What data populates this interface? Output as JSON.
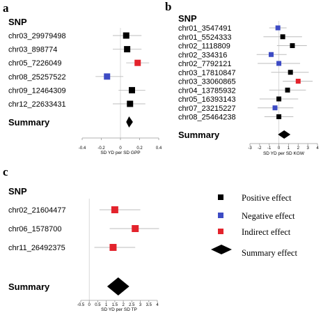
{
  "chart_data": [
    {
      "type": "forest",
      "panel": "a",
      "header": "SNP",
      "xlabel": "SD YD per SD GPP",
      "xlim": [
        -0.4,
        0.4
      ],
      "ticks": [
        "-0.4",
        "-0.2",
        "0",
        "0.2",
        "0.4"
      ],
      "summary_label": "Summary",
      "rows": [
        {
          "label": "chr03_29979498",
          "est": 0.06,
          "lo": -0.08,
          "hi": 0.22,
          "effect": "positive"
        },
        {
          "label": "chr03_898774",
          "est": 0.07,
          "lo": -0.08,
          "hi": 0.22,
          "effect": "positive"
        },
        {
          "label": "chr05_7226049",
          "est": 0.18,
          "lo": 0.06,
          "hi": 0.3,
          "effect": "indirect"
        },
        {
          "label": "chr08_25257522",
          "est": -0.14,
          "lo": -0.26,
          "hi": 0.03,
          "effect": "negative"
        },
        {
          "label": "chr09_12464309",
          "est": 0.12,
          "lo": -0.02,
          "hi": 0.26,
          "effect": "positive"
        },
        {
          "label": "chr12_22633431",
          "est": 0.1,
          "lo": -0.08,
          "hi": 0.26,
          "effect": "positive"
        }
      ],
      "summary": {
        "est": 0.09,
        "lo": 0.06,
        "hi": 0.13
      }
    },
    {
      "type": "forest",
      "panel": "b",
      "header": "SNP",
      "xlabel": "SD YD per SD KGW",
      "xlim": [
        -3,
        4
      ],
      "ticks": [
        "-3",
        "-2",
        "-1",
        "0",
        "1",
        "2",
        "3",
        "4"
      ],
      "summary_label": "Summary",
      "rows": [
        {
          "label": "chr01_3547491",
          "est": -0.1,
          "lo": -1.0,
          "hi": 0.8,
          "effect": "negative"
        },
        {
          "label": "chr01_5524333",
          "est": 0.4,
          "lo": -1.6,
          "hi": 2.4,
          "effect": "positive"
        },
        {
          "label": "chr02_1118809",
          "est": 1.4,
          "lo": -0.2,
          "hi": 2.9,
          "effect": "positive"
        },
        {
          "label": "chr02_334316",
          "est": -0.8,
          "lo": -2.3,
          "hi": 0.8,
          "effect": "negative"
        },
        {
          "label": "chr02_7792121",
          "est": 0.0,
          "lo": -2.2,
          "hi": 2.2,
          "effect": "negative"
        },
        {
          "label": "chr03_17810847",
          "est": 1.2,
          "lo": -0.8,
          "hi": 3.1,
          "effect": "positive"
        },
        {
          "label": "chr03_33060865",
          "est": 2.0,
          "lo": 0.4,
          "hi": 3.5,
          "effect": "indirect"
        },
        {
          "label": "chr04_13785932",
          "est": 0.9,
          "lo": -1.0,
          "hi": 2.8,
          "effect": "positive"
        },
        {
          "label": "chr05_16393143",
          "est": 0.0,
          "lo": -2.0,
          "hi": 2.0,
          "effect": "positive"
        },
        {
          "label": "chr07_23215227",
          "est": -0.4,
          "lo": -2.2,
          "hi": 1.5,
          "effect": "negative"
        },
        {
          "label": "chr08_25464238",
          "est": 0.0,
          "lo": -1.5,
          "hi": 1.5,
          "effect": "positive"
        }
      ],
      "summary": {
        "est": 0.55,
        "lo": -0.1,
        "hi": 1.2
      }
    },
    {
      "type": "forest",
      "panel": "c",
      "header": "SNP",
      "xlabel": "SD YD per SD TP",
      "xlim": [
        -0.5,
        4
      ],
      "ticks": [
        "-0.5",
        "0",
        "0.5",
        "1",
        "1.5",
        "2",
        "2.5",
        "3",
        "3.5",
        "4"
      ],
      "summary_label": "Summary",
      "rows": [
        {
          "label": "chr02_21604477",
          "est": 1.5,
          "lo": 0.6,
          "hi": 3.0,
          "effect": "indirect"
        },
        {
          "label": "chr06_1578700",
          "est": 2.7,
          "lo": 1.2,
          "hi": 4.1,
          "effect": "indirect"
        },
        {
          "label": "chr11_26492375",
          "est": 1.4,
          "lo": 0.3,
          "hi": 2.7,
          "effect": "indirect"
        }
      ],
      "summary": {
        "est": 1.7,
        "lo": 1.05,
        "hi": 2.35
      }
    }
  ],
  "legend": [
    {
      "label": "Positive effect",
      "shape": "square",
      "color": "#000000"
    },
    {
      "label": "Negative effect",
      "shape": "square",
      "color": "#3d4bc4"
    },
    {
      "label": "Indirect effect",
      "shape": "square",
      "color": "#e3232c"
    },
    {
      "label": "Summary effect",
      "shape": "diamond",
      "color": "#000000"
    }
  ],
  "colors": {
    "positive": "#000000",
    "negative": "#3d4bc4",
    "indirect": "#e3232c",
    "ci_line": "#bdbdbd",
    "axis": "#9a9a9a"
  }
}
